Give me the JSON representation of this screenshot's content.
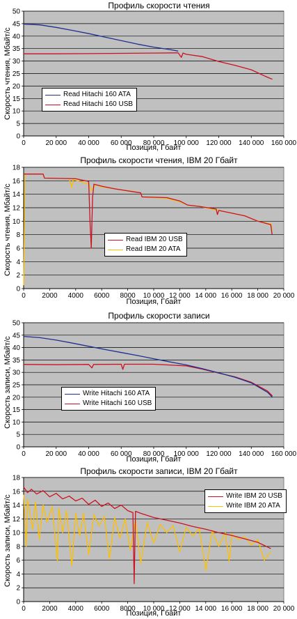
{
  "chart_data": [
    {
      "type": "line",
      "title": "Профиль скорости чтения",
      "xlabel": "Позиция, Гбайт",
      "ylabel": "Скорость чтения, Мбайт/с",
      "xlim": [
        0,
        160000
      ],
      "ylim": [
        0,
        50
      ],
      "xticks": [
        0,
        20000,
        40000,
        60000,
        80000,
        100000,
        120000,
        140000,
        160000
      ],
      "xtick_labels": [
        "0",
        "20 000",
        "40 000",
        "60 000",
        "80 000",
        "100 000",
        "120 000",
        "140 000",
        "160 000"
      ],
      "yticks": [
        0,
        5,
        10,
        15,
        20,
        25,
        30,
        35,
        40,
        45,
        50
      ],
      "ytick_labels": [
        "0",
        "5",
        "10",
        "15",
        "20",
        "25",
        "30",
        "35",
        "40",
        "45",
        "50"
      ],
      "grid": true,
      "legend_position": "center-left",
      "series": [
        {
          "name": "Read Hitachi 160 ATA",
          "color": "#1f2f8f",
          "x": [
            0,
            10000,
            20000,
            30000,
            40000,
            50000,
            60000,
            70000,
            80000,
            90000,
            95000
          ],
          "y": [
            44.8,
            44.5,
            43.5,
            42.3,
            41.0,
            39.6,
            38.2,
            36.8,
            35.6,
            34.6,
            34.0
          ]
        },
        {
          "name": "Read Hitachi 160 USB",
          "color": "#cc1122",
          "x": [
            0,
            20000,
            40000,
            60000,
            80000,
            95000,
            97000,
            98000,
            100000,
            110000,
            120000,
            130000,
            140000,
            145000,
            150000,
            153000
          ],
          "y": [
            32.9,
            32.9,
            33.0,
            33.1,
            33.2,
            33.3,
            31.5,
            33.2,
            32.7,
            31.8,
            29.8,
            28.3,
            26.5,
            25.0,
            23.5,
            22.7
          ]
        }
      ]
    },
    {
      "type": "line",
      "title": "Профиль скорости чтения, IBM 20 Гбайт",
      "xlabel": "Позиция, Гбайт",
      "ylabel": "Скорость чтения, Мбайт/с",
      "xlim": [
        0,
        20000
      ],
      "ylim": [
        0,
        18
      ],
      "xticks": [
        0,
        2000,
        4000,
        6000,
        8000,
        10000,
        12000,
        14000,
        16000,
        18000,
        20000
      ],
      "xtick_labels": [
        "0",
        "2000",
        "4000",
        "6000",
        "8000",
        "10 000",
        "12 000",
        "14 000",
        "16 000",
        "18 000",
        "20 000"
      ],
      "yticks": [
        0,
        2,
        4,
        6,
        8,
        10,
        12,
        14,
        16,
        18
      ],
      "ytick_labels": [
        "0",
        "2",
        "4",
        "6",
        "8",
        "10",
        "12",
        "14",
        "16",
        "18"
      ],
      "grid": true,
      "legend_position": "center",
      "series": [
        {
          "name": "Read IBM 20 USB",
          "color": "#cc1122",
          "x": [
            0,
            1500,
            1600,
            4000,
            5000,
            5100,
            5200,
            5300,
            5400,
            6000,
            7000,
            9000,
            9100,
            11000,
            12000,
            12600,
            13500,
            14800,
            14900,
            15000,
            17000,
            18000,
            19000,
            19100
          ],
          "y": [
            17.0,
            17.0,
            16.4,
            16.3,
            15.9,
            10.0,
            6.0,
            13.5,
            15.5,
            15.2,
            14.8,
            14.2,
            13.6,
            13.5,
            13.0,
            12.4,
            12.2,
            11.8,
            11.0,
            11.6,
            10.8,
            10.0,
            9.5,
            8.0
          ]
        },
        {
          "name": "Read IBM 20 ATA",
          "color": "#ffc000",
          "x": [
            0,
            100,
            200,
            1500,
            1600,
            3500,
            3700,
            3800,
            4500,
            5000,
            5200,
            5500,
            6000,
            7000,
            8500,
            9000,
            9100,
            11000,
            12000,
            12600,
            13500,
            15000,
            17000,
            18000,
            19000,
            19100
          ],
          "y": [
            0.5,
            16.8,
            17.0,
            17.0,
            16.4,
            16.3,
            15.0,
            16.2,
            15.8,
            15.5,
            14.5,
            15.4,
            15.1,
            14.8,
            14.4,
            14.2,
            13.6,
            13.4,
            12.9,
            12.4,
            12.2,
            11.6,
            10.8,
            10.0,
            9.6,
            8.8
          ]
        }
      ]
    },
    {
      "type": "line",
      "title": "Профиль скорости записи",
      "xlabel": "Позиция, Гбайт",
      "ylabel": "Скорость записи, Мбайт/с",
      "xlim": [
        0,
        160000
      ],
      "ylim": [
        0,
        50
      ],
      "xticks": [
        0,
        20000,
        40000,
        60000,
        80000,
        100000,
        120000,
        140000,
        160000
      ],
      "xtick_labels": [
        "0",
        "20 000",
        "40 000",
        "60 000",
        "80 000",
        "100 000",
        "120 000",
        "140 000",
        "160 000"
      ],
      "yticks": [
        0,
        5,
        10,
        15,
        20,
        25,
        30,
        35,
        40,
        45,
        50
      ],
      "ytick_labels": [
        "0",
        "5",
        "10",
        "15",
        "20",
        "25",
        "30",
        "35",
        "40",
        "45",
        "50"
      ],
      "grid": true,
      "legend_position": "center-left",
      "series": [
        {
          "name": "Write Hitachi 160 ATA",
          "color": "#1f2f8f",
          "x": [
            0,
            10000,
            20000,
            30000,
            40000,
            50000,
            60000,
            70000,
            80000,
            90000,
            100000,
            110000,
            120000,
            130000,
            140000,
            150000,
            153000
          ],
          "y": [
            44.5,
            44.0,
            43.0,
            41.8,
            40.5,
            39.2,
            38.0,
            36.8,
            35.5,
            34.2,
            33.0,
            31.5,
            29.8,
            28.0,
            25.8,
            22.0,
            20.0
          ]
        },
        {
          "name": "Write Hitachi 160 USB",
          "color": "#cc1122",
          "x": [
            0,
            20000,
            40000,
            42000,
            43000,
            60000,
            61000,
            62000,
            80000,
            100000,
            110000,
            120000,
            130000,
            140000,
            150000,
            153000
          ],
          "y": [
            33.2,
            33.1,
            33.2,
            31.8,
            33.2,
            33.3,
            31.2,
            33.3,
            33.3,
            32.6,
            31.3,
            29.7,
            28.2,
            26.0,
            22.5,
            20.5
          ]
        }
      ]
    },
    {
      "type": "line",
      "title": "Профиль скорости записи, IBM 20 Гбайт",
      "xlabel": "Позиция, Гбайт",
      "ylabel": "Скорость записи, Мбайт/с",
      "xlim": [
        0,
        20000
      ],
      "ylim": [
        0,
        18
      ],
      "xticks": [
        0,
        2000,
        4000,
        6000,
        8000,
        10000,
        12000,
        14000,
        16000,
        18000,
        20000
      ],
      "xtick_labels": [
        "0",
        "2000",
        "4000",
        "6000",
        "8000",
        "10 000",
        "12 000",
        "14 000",
        "16 000",
        "18 000",
        "20 000"
      ],
      "yticks": [
        0,
        2,
        4,
        6,
        8,
        10,
        12,
        14,
        16,
        18
      ],
      "ytick_labels": [
        "0",
        "2",
        "4",
        "6",
        "8",
        "10",
        "12",
        "14",
        "16",
        "18"
      ],
      "grid": true,
      "legend_position": "top-right",
      "series": [
        {
          "name": "Write IBM 20 USB",
          "color": "#cc1122",
          "x": [
            0,
            300,
            600,
            1000,
            1500,
            2000,
            2500,
            3000,
            3500,
            4000,
            4500,
            5000,
            5500,
            6000,
            6500,
            7000,
            7500,
            8000,
            8400,
            8500,
            8600,
            9000,
            10000,
            11000,
            12000,
            13000,
            14000,
            15000,
            16000,
            17000,
            18000,
            19000
          ],
          "y": [
            16.6,
            15.8,
            16.3,
            15.6,
            16.1,
            15.2,
            15.7,
            14.9,
            15.3,
            14.6,
            15.0,
            14.1,
            14.7,
            13.8,
            14.3,
            13.5,
            14.0,
            13.2,
            12.9,
            2.6,
            13.1,
            12.8,
            12.2,
            11.8,
            11.4,
            10.9,
            10.5,
            10.0,
            9.6,
            9.1,
            8.6,
            7.7
          ]
        },
        {
          "name": "Write IBM 20 ATA",
          "color": "#ffc000",
          "x": [
            0,
            200,
            300,
            700,
            900,
            1200,
            1500,
            1800,
            2200,
            2600,
            2700,
            3000,
            3300,
            3700,
            4000,
            4300,
            4600,
            5000,
            5400,
            5800,
            6200,
            6600,
            7000,
            7400,
            7800,
            8200,
            8600,
            9000,
            9500,
            10000,
            10500,
            11000,
            11500,
            12000,
            12500,
            13000,
            13500,
            14000,
            14500,
            15000,
            15500,
            15800,
            16000,
            16500,
            17000,
            17500,
            18000,
            18500,
            19000
          ],
          "y": [
            15.5,
            8.0,
            14.8,
            10.5,
            14.5,
            9.0,
            14.0,
            11.5,
            13.8,
            5.8,
            13.5,
            10.0,
            13.2,
            5.2,
            12.8,
            9.5,
            12.8,
            6.8,
            12.6,
            11.0,
            12.4,
            6.2,
            12.2,
            9.2,
            12.0,
            7.5,
            11.8,
            5.5,
            11.5,
            8.5,
            11.2,
            10.0,
            11.0,
            7.2,
            10.8,
            9.5,
            10.6,
            4.5,
            10.3,
            8.0,
            10.0,
            5.8,
            9.8,
            9.0,
            9.4,
            8.2,
            9.0,
            6.0,
            7.2
          ]
        }
      ]
    }
  ]
}
